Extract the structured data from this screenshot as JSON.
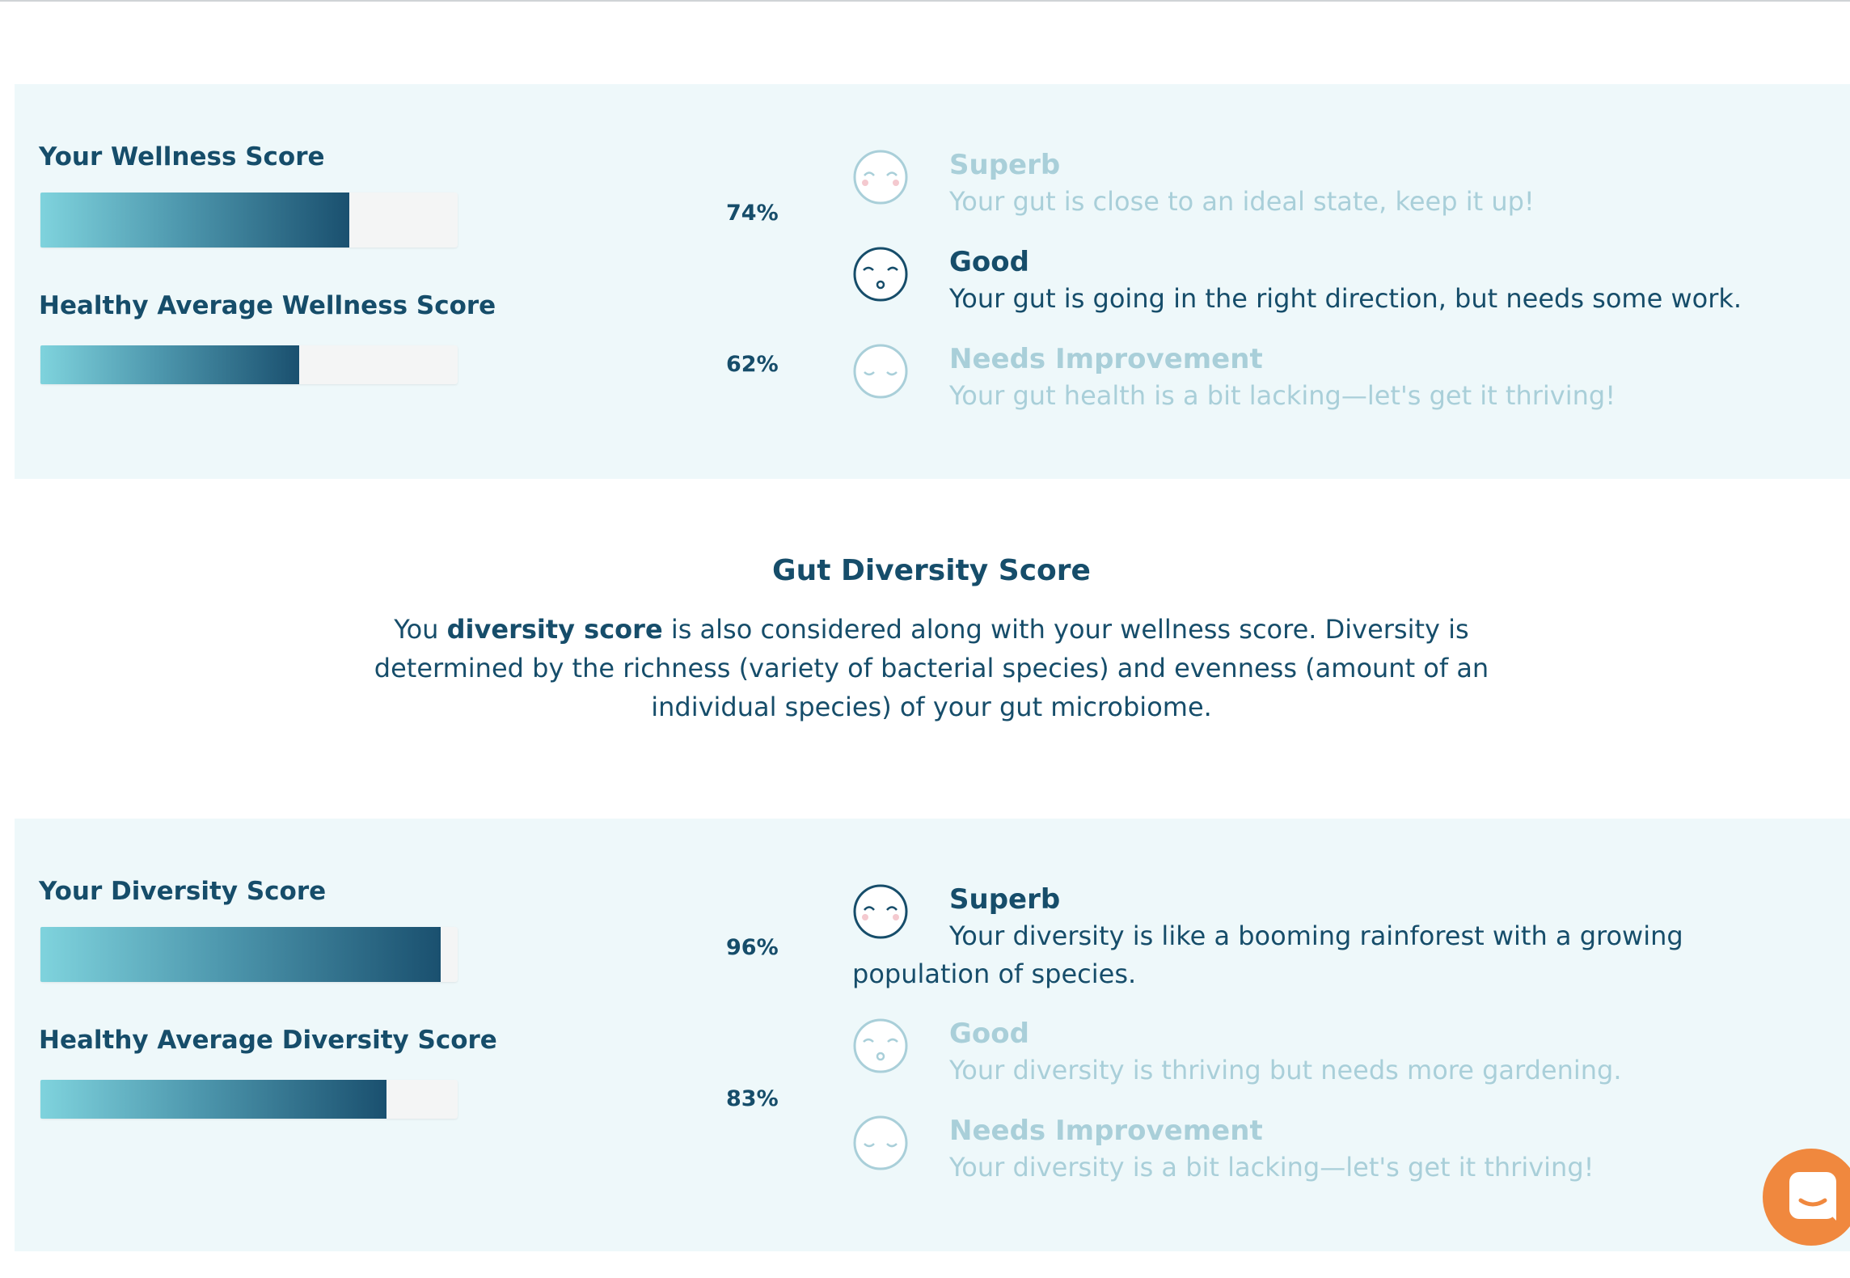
{
  "wellness": {
    "your_title": "Your Wellness Score",
    "your_value": 74,
    "your_pct": "74%",
    "avg_title": "Healthy Average Wellness Score",
    "avg_value": 62,
    "avg_pct": "62%",
    "levels": [
      {
        "name": "Superb",
        "desc": "Your gut is close to an ideal state, keep it up!",
        "state": "inactive"
      },
      {
        "name": "Good",
        "desc": "Your gut is going in the right direction, but needs some work.",
        "state": "active"
      },
      {
        "name": "Needs Improvement",
        "desc": "Your gut health is a bit lacking—let's get it thriving!",
        "state": "inactive"
      }
    ]
  },
  "diversity_section": {
    "heading": "Gut Diversity Score",
    "intro_before": "You ",
    "intro_bold": "diversity score",
    "intro_after": " is also considered along with your wellness score. Diversity is determined by the richness (variety of bacterial species) and evenness (amount of an individual species) of your gut microbiome."
  },
  "diversity": {
    "your_title": "Your Diversity Score",
    "your_value": 96,
    "your_pct": "96%",
    "avg_title": "Healthy Average Diversity Score",
    "avg_value": 83,
    "avg_pct": "83%",
    "levels": [
      {
        "name": "Superb",
        "desc": "Your diversity is like a booming rainforest with a growing population of species.",
        "state": "active"
      },
      {
        "name": "Good",
        "desc": "Your diversity is thriving but needs more gardening.",
        "state": "inactive"
      },
      {
        "name": "Needs Improvement",
        "desc": "Your diversity is a bit lacking—let's get it thriving!",
        "state": "inactive"
      }
    ]
  },
  "icons": {
    "superb": "smiling-face-icon",
    "good": "surprised-face-icon",
    "needs_improvement": "sleepy-face-icon",
    "chat": "chat-bubble-icon"
  },
  "colors": {
    "panel_background": "#eef8fa",
    "text_primary": "#164d6a",
    "text_dim": "#a9cfd9",
    "bar_gradient_start": "#7fd3dd",
    "bar_gradient_end": "#1a506f",
    "chat_button": "#f0883e"
  }
}
